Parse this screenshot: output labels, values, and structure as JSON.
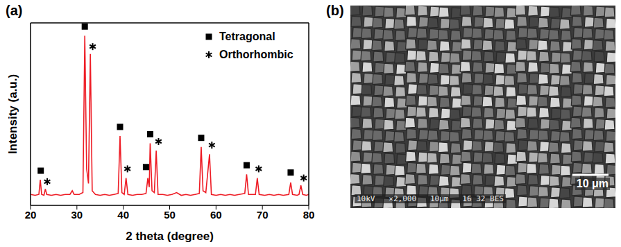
{
  "chart_data": {
    "type": "line",
    "panel": "(a)",
    "x_label": "2 theta (degree)",
    "y_label": "Intensity (a.u.)",
    "xlim": [
      20,
      80
    ],
    "xticks": [
      20,
      30,
      40,
      50,
      60,
      70,
      80
    ],
    "ylim": [
      0,
      100
    ],
    "tick_labels": "x",
    "grid": false,
    "legend": "upper right",
    "series": [
      {
        "type": "line",
        "color": "#ee1c25",
        "marker": "none",
        "x": [
          20,
          21,
          21.8,
          22.1,
          22.4,
          22.9,
          23.2,
          23.5,
          24.5,
          25.5,
          26.5,
          27.5,
          28.5,
          29,
          29.4,
          30.5,
          31.3,
          31.7,
          32.1,
          32.5,
          32.9,
          33.3,
          34,
          35,
          36,
          37,
          38,
          38.9,
          39.3,
          39.7,
          40.2,
          40.6,
          41,
          42,
          43,
          44,
          44.9,
          45.3,
          45.6,
          45.8,
          46.2,
          46.7,
          47.1,
          47.5,
          48.5,
          49.5,
          50.5,
          51.5,
          52.5,
          53.5,
          54.5,
          55.5,
          56.4,
          56.8,
          57.2,
          57.8,
          58.6,
          59,
          60,
          61,
          62,
          63,
          64,
          65,
          66.2,
          66.6,
          67,
          68.5,
          68.9,
          69.3,
          70.5,
          71.5,
          72.5,
          73.5,
          74.5,
          75.7,
          76.1,
          76.5,
          77.5,
          77.9,
          78.3,
          78.7,
          79.5,
          80
        ],
        "values": [
          6,
          5.5,
          6,
          14,
          6,
          5.5,
          9,
          6,
          5.5,
          6,
          5.5,
          6,
          6,
          8,
          6,
          6,
          7,
          93,
          20,
          12,
          83,
          8,
          6,
          5.5,
          6,
          5.5,
          6,
          6.5,
          38,
          7,
          6,
          15,
          6,
          5.5,
          6,
          6,
          6.5,
          15,
          10,
          34,
          8,
          7,
          30,
          6,
          6,
          5.5,
          6,
          7,
          5.5,
          6,
          5.5,
          6,
          6.5,
          32,
          8,
          7,
          28,
          6,
          5.5,
          6,
          5.5,
          6,
          5.5,
          6,
          6.5,
          17,
          6,
          6,
          15,
          6,
          5.5,
          6,
          5.5,
          6,
          5.5,
          6,
          12.5,
          6,
          5.5,
          6,
          11,
          6,
          5.5,
          6
        ]
      },
      {
        "name": "Tetragonal",
        "type": "scatter",
        "marker": "square",
        "color": "#000000",
        "x": [
          22.2,
          31.7,
          39.3,
          44.9,
          45.8,
          56.8,
          66.6,
          76.1
        ],
        "values": [
          19,
          98,
          43,
          21,
          39,
          37,
          22,
          18
        ]
      },
      {
        "name": "Orthorhombic",
        "type": "scatter",
        "marker": "asterisk",
        "color": "#000000",
        "x": [
          23.6,
          33.4,
          40.9,
          47.6,
          59.1,
          69.2,
          78.9
        ],
        "values": [
          13,
          87,
          20,
          35,
          33,
          20,
          15
        ]
      }
    ]
  },
  "image": {
    "panel": "(b)",
    "scale_bar": "10 μm",
    "info_bar": "10kV   ×2,000   10μm   16 32 BES"
  }
}
